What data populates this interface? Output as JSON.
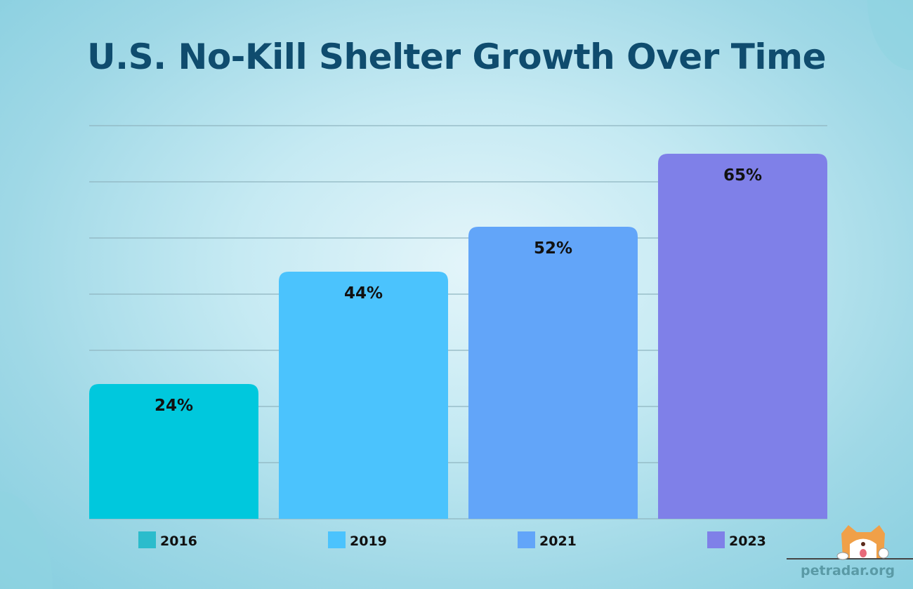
{
  "chart_data": {
    "type": "bar",
    "title": "U.S. No-Kill Shelter Growth Over Time",
    "categories": [
      "2016",
      "2019",
      "2021",
      "2023"
    ],
    "values": [
      24,
      44,
      52,
      65
    ],
    "data_labels": [
      "24%",
      "44%",
      "52%",
      "65%"
    ],
    "unit": "%",
    "ylim": [
      0,
      70
    ],
    "grid": true,
    "grid_step": 10,
    "legend_placement": "bottom",
    "colors": [
      "#00c8dd",
      "#4bc3fd",
      "#62a5f9",
      "#7f80e8"
    ],
    "legend_colors": [
      "#2bbccc",
      "#4bc3fd",
      "#62a5f9",
      "#7f80e8"
    ]
  },
  "brand": {
    "text": "petradar.org",
    "icon": "shiba-dog-mascot-icon"
  }
}
